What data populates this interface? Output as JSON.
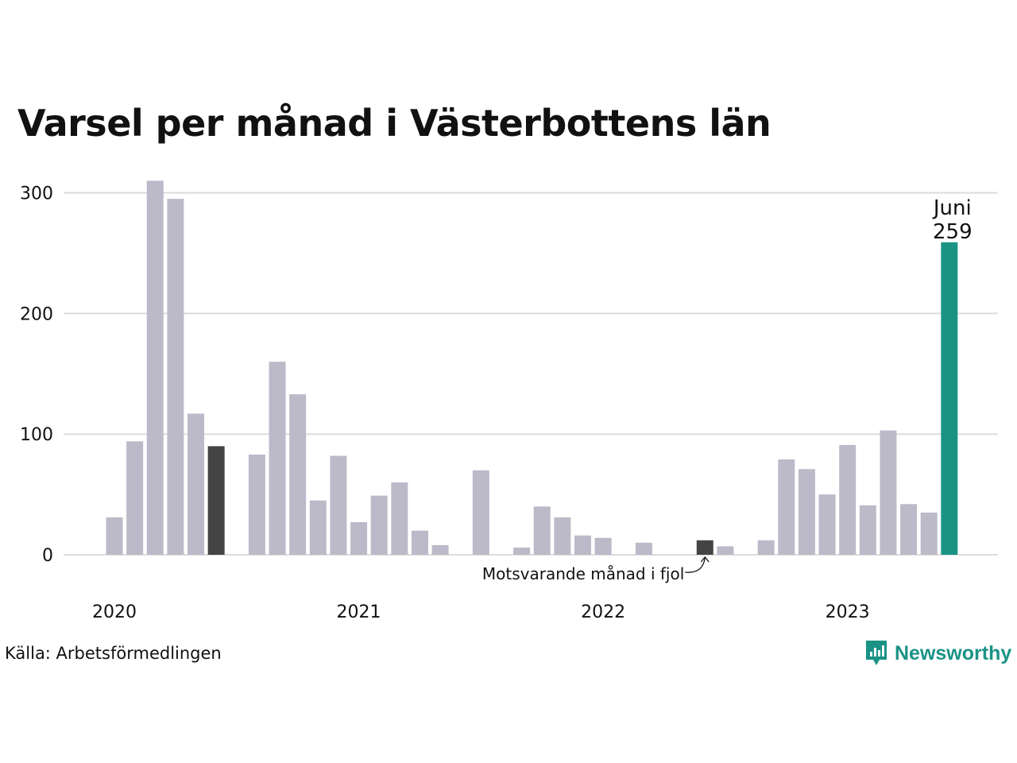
{
  "chart_data": {
    "type": "bar",
    "title": "Varsel per månad i Västerbottens län",
    "x": [
      "2020-01",
      "2020-02",
      "2020-03",
      "2020-04",
      "2020-05",
      "2020-06",
      "2020-07",
      "2020-08",
      "2020-09",
      "2020-10",
      "2020-11",
      "2020-12",
      "2021-01",
      "2021-02",
      "2021-03",
      "2021-04",
      "2021-05",
      "2021-06",
      "2021-07",
      "2021-08",
      "2021-09",
      "2021-10",
      "2021-11",
      "2021-12",
      "2022-01",
      "2022-02",
      "2022-03",
      "2022-04",
      "2022-05",
      "2022-06",
      "2022-07",
      "2022-08",
      "2022-09",
      "2022-10",
      "2022-11",
      "2022-12",
      "2023-01",
      "2023-02",
      "2023-03",
      "2023-04",
      "2023-05",
      "2023-06"
    ],
    "values": [
      31,
      94,
      310,
      295,
      117,
      90,
      0,
      83,
      160,
      133,
      45,
      82,
      27,
      49,
      60,
      20,
      8,
      0,
      70,
      0,
      6,
      40,
      31,
      16,
      14,
      0,
      10,
      0,
      0,
      12,
      7,
      0,
      12,
      79,
      71,
      50,
      91,
      41,
      103,
      42,
      35,
      259
    ],
    "x_tick_labels": [
      "2020",
      "2021",
      "2022",
      "2023"
    ],
    "y_ticks": [
      0,
      100,
      200,
      300
    ],
    "ylim": [
      0,
      320
    ],
    "grid": true,
    "highlighted": {
      "last_month": {
        "index": 41,
        "label_line1": "Juni",
        "label_line2": "259"
      },
      "same_month_prior_years": [
        5,
        29
      ]
    },
    "annotation": {
      "text": "Motsvarande månad i fjol",
      "target_index": 29
    },
    "colors": {
      "bar": "#bcbac9",
      "prior": "#444444",
      "current": "#1a9385",
      "grid": "#dcdcdc"
    }
  },
  "source_label": "Källa: Arbetsförmedlingen",
  "brand": {
    "name": "Newsworthy",
    "icon": "newsworthy-logo-icon"
  }
}
